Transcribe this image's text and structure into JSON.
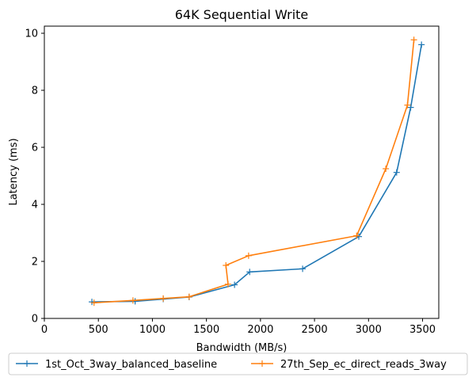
{
  "chart_data": {
    "type": "line",
    "title": "64K  Sequential Write",
    "xlabel": "Bandwidth (MB/s)",
    "ylabel": "Latency (ms)",
    "xlim": [
      0,
      3650
    ],
    "ylim": [
      0,
      10.25
    ],
    "x_ticks": [
      0,
      500,
      1000,
      1500,
      2000,
      2500,
      3000,
      3500
    ],
    "y_ticks": [
      0,
      2,
      4,
      6,
      8,
      10
    ],
    "grid": false,
    "legend_position": "bottom-center-outside",
    "marker": "+",
    "series": [
      {
        "name": "1st_Oct_3way_balanced_baseline",
        "color": "#1f77b4",
        "x": [
          440,
          840,
          1100,
          1340,
          1760,
          1900,
          2390,
          2910,
          3260,
          3390,
          3490
        ],
        "y": [
          0.58,
          0.6,
          0.68,
          0.75,
          1.18,
          1.63,
          1.74,
          2.87,
          5.12,
          7.4,
          9.6
        ]
      },
      {
        "name": "27th_Sep_ec_direct_reads_3way",
        "color": "#ff7f0e",
        "x": [
          460,
          820,
          1100,
          1340,
          1700,
          1680,
          1890,
          2890,
          3160,
          3360,
          3420
        ],
        "y": [
          0.55,
          0.63,
          0.7,
          0.76,
          1.2,
          1.86,
          2.2,
          2.9,
          5.25,
          7.48,
          9.77
        ]
      }
    ]
  }
}
